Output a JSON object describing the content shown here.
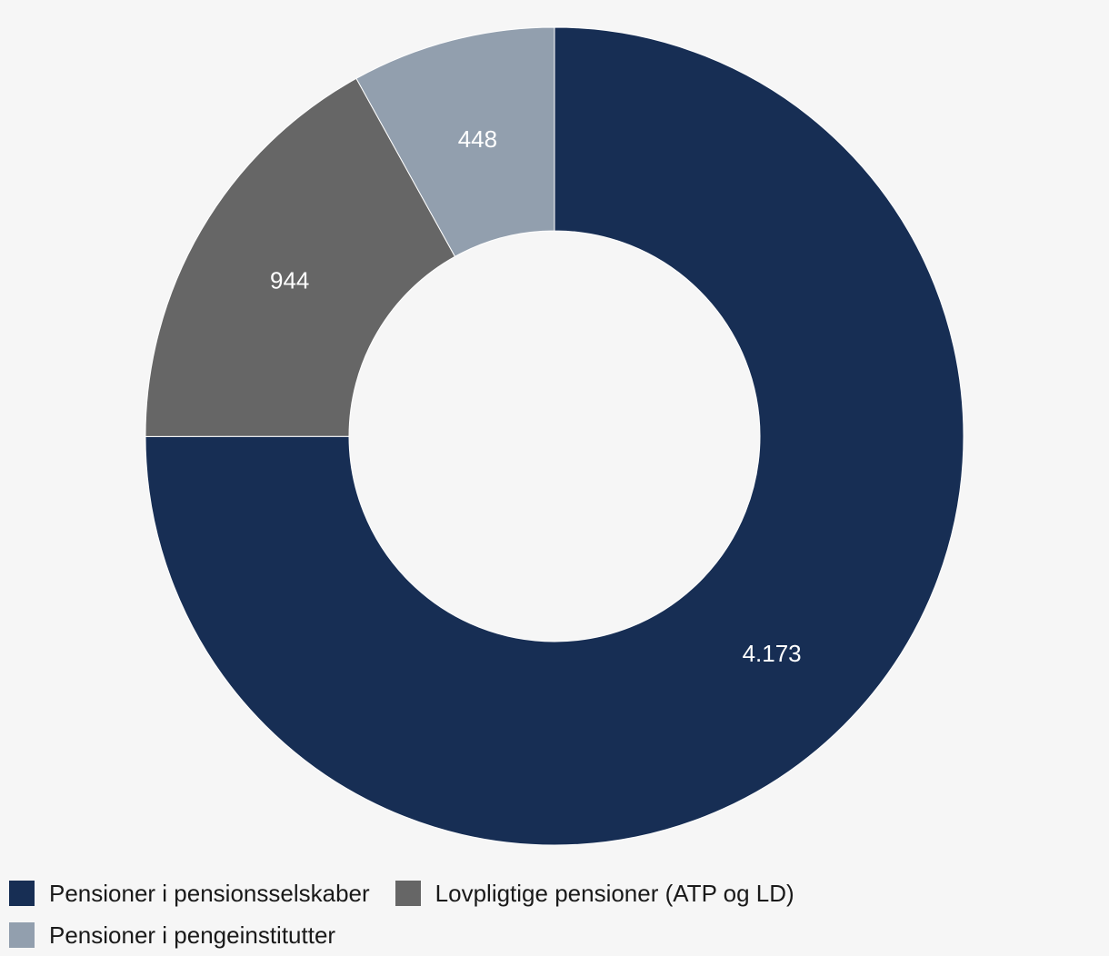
{
  "chart_data": {
    "type": "pie",
    "variant": "donut",
    "series": [
      {
        "name": "Pensioner i pensionsselskaber",
        "value": 4173,
        "label": "4.173",
        "color": "#172e54"
      },
      {
        "name": "Lovpligtige pensioner (ATP og LD)",
        "value": 944,
        "label": "944",
        "color": "#666666"
      },
      {
        "name": "Pensioner i pengeinstitutter",
        "value": 448,
        "label": "448",
        "color": "#929fae"
      }
    ],
    "legend_position": "bottom-left",
    "background_color": "#f6f6f6"
  }
}
